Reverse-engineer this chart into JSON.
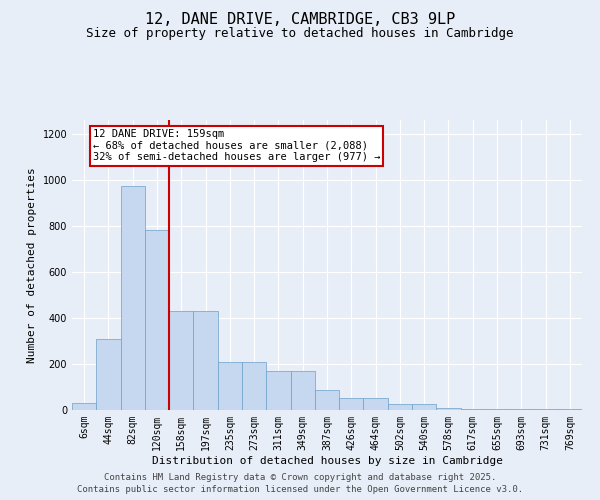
{
  "title": "12, DANE DRIVE, CAMBRIDGE, CB3 9LP",
  "subtitle": "Size of property relative to detached houses in Cambridge",
  "xlabel": "Distribution of detached houses by size in Cambridge",
  "ylabel": "Number of detached properties",
  "categories": [
    "6sqm",
    "44sqm",
    "82sqm",
    "120sqm",
    "158sqm",
    "197sqm",
    "235sqm",
    "273sqm",
    "311sqm",
    "349sqm",
    "387sqm",
    "426sqm",
    "464sqm",
    "502sqm",
    "540sqm",
    "578sqm",
    "617sqm",
    "655sqm",
    "693sqm",
    "731sqm",
    "769sqm"
  ],
  "values": [
    30,
    310,
    975,
    780,
    430,
    430,
    210,
    210,
    170,
    170,
    85,
    50,
    50,
    25,
    25,
    10,
    5,
    5,
    5,
    5,
    5
  ],
  "bar_color": "#c5d8f0",
  "bar_edge_color": "#6b9fc8",
  "vline_index": 4,
  "vline_color": "#cc0000",
  "annotation_title": "12 DANE DRIVE: 159sqm",
  "annotation_line1": "← 68% of detached houses are smaller (2,088)",
  "annotation_line2": "32% of semi-detached houses are larger (977) →",
  "annotation_box_color": "#cc0000",
  "ylim": [
    0,
    1260
  ],
  "yticks": [
    0,
    200,
    400,
    600,
    800,
    1000,
    1200
  ],
  "footnote1": "Contains HM Land Registry data © Crown copyright and database right 2025.",
  "footnote2": "Contains public sector information licensed under the Open Government Licence v3.0.",
  "bg_color": "#e8eef7",
  "title_fontsize": 11,
  "subtitle_fontsize": 9,
  "ylabel_fontsize": 8,
  "xlabel_fontsize": 8,
  "tick_fontsize": 7,
  "annot_fontsize": 7.5,
  "footnote_fontsize": 6.5
}
